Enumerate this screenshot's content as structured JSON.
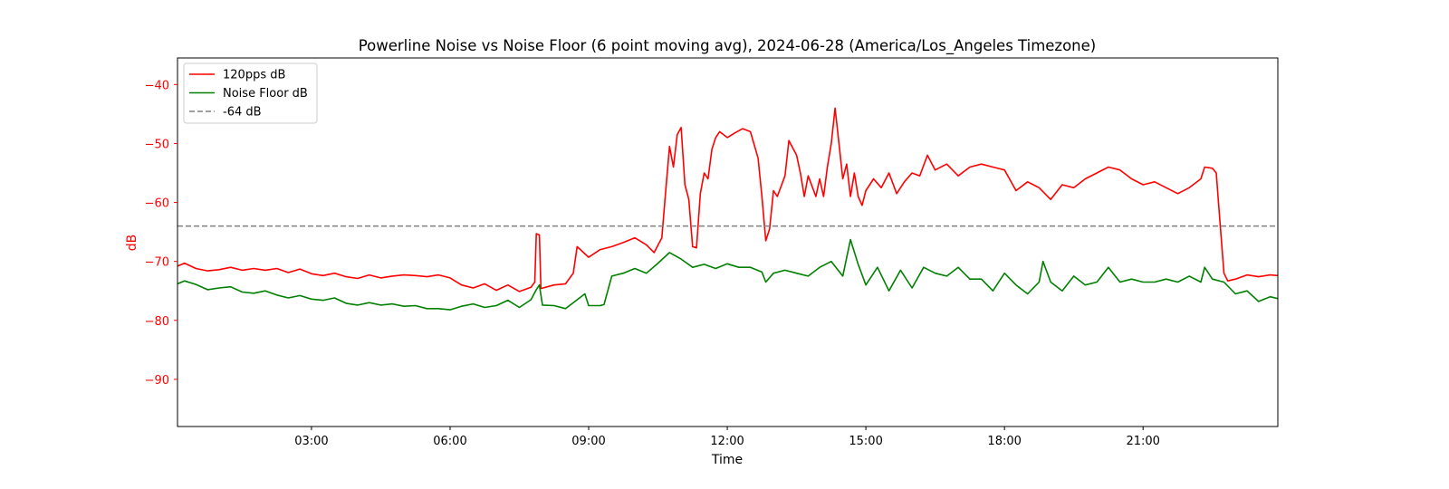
{
  "chart_data": {
    "type": "line",
    "title": "Powerline Noise vs Noise Floor (6 point moving avg), 2024-06-28 (America/Los_Angeles Timezone)",
    "xlabel": "Time",
    "ylabel": "dB",
    "ylabel_color": "#ff0000",
    "ytick_color": "#ff0000",
    "xlim": [
      "00:06",
      "23:55"
    ],
    "ylim": [
      -98,
      -35.5
    ],
    "xticks": [
      "03:00",
      "06:00",
      "09:00",
      "12:00",
      "15:00",
      "18:00",
      "21:00"
    ],
    "yticks": [
      -40,
      -50,
      -60,
      -70,
      -80,
      -90
    ],
    "grid": false,
    "legend_position": "upper-left",
    "series": [
      {
        "name": "120pps dB",
        "color": "#ff0000",
        "style": "solid",
        "points": [
          [
            "00:06",
            -70.8
          ],
          [
            "00:15",
            -70.3
          ],
          [
            "00:30",
            -71.2
          ],
          [
            "00:45",
            -71.6
          ],
          [
            "01:00",
            -71.4
          ],
          [
            "01:15",
            -71.0
          ],
          [
            "01:30",
            -71.5
          ],
          [
            "01:45",
            -71.2
          ],
          [
            "02:00",
            -71.5
          ],
          [
            "02:15",
            -71.2
          ],
          [
            "02:30",
            -71.9
          ],
          [
            "02:45",
            -71.3
          ],
          [
            "03:00",
            -72.1
          ],
          [
            "03:15",
            -72.4
          ],
          [
            "03:30",
            -72.0
          ],
          [
            "03:45",
            -72.6
          ],
          [
            "04:00",
            -72.9
          ],
          [
            "04:15",
            -72.3
          ],
          [
            "04:30",
            -72.8
          ],
          [
            "04:45",
            -72.5
          ],
          [
            "05:00",
            -72.3
          ],
          [
            "05:15",
            -72.4
          ],
          [
            "05:30",
            -72.6
          ],
          [
            "05:45",
            -72.3
          ],
          [
            "06:00",
            -72.8
          ],
          [
            "06:15",
            -74.0
          ],
          [
            "06:30",
            -74.5
          ],
          [
            "06:45",
            -73.8
          ],
          [
            "07:00",
            -74.9
          ],
          [
            "07:15",
            -74.0
          ],
          [
            "07:30",
            -75.1
          ],
          [
            "07:45",
            -74.4
          ],
          [
            "07:50",
            -73.5
          ],
          [
            "07:52",
            -65.3
          ],
          [
            "07:56",
            -65.5
          ],
          [
            "07:58",
            -74.6
          ],
          [
            "08:15",
            -74.0
          ],
          [
            "08:30",
            -73.8
          ],
          [
            "08:40",
            -72.0
          ],
          [
            "08:45",
            -67.5
          ],
          [
            "09:00",
            -69.3
          ],
          [
            "09:15",
            -68.0
          ],
          [
            "09:30",
            -67.5
          ],
          [
            "09:45",
            -66.8
          ],
          [
            "10:00",
            -66.0
          ],
          [
            "10:15",
            -67.2
          ],
          [
            "10:25",
            -68.5
          ],
          [
            "10:35",
            -66.0
          ],
          [
            "10:40",
            -58.0
          ],
          [
            "10:45",
            -50.5
          ],
          [
            "10:50",
            -54.0
          ],
          [
            "10:55",
            -48.5
          ],
          [
            "11:00",
            -47.3
          ],
          [
            "11:05",
            -57.0
          ],
          [
            "11:10",
            -59.5
          ],
          [
            "11:15",
            -67.5
          ],
          [
            "11:20",
            -67.7
          ],
          [
            "11:25",
            -58.5
          ],
          [
            "11:30",
            -55.0
          ],
          [
            "11:35",
            -56.0
          ],
          [
            "11:40",
            -51.0
          ],
          [
            "11:45",
            -49.0
          ],
          [
            "11:50",
            -48.0
          ],
          [
            "12:00",
            -49.0
          ],
          [
            "12:10",
            -48.2
          ],
          [
            "12:20",
            -47.5
          ],
          [
            "12:30",
            -48.0
          ],
          [
            "12:40",
            -52.5
          ],
          [
            "12:45",
            -59.0
          ],
          [
            "12:50",
            -66.5
          ],
          [
            "12:55",
            -64.5
          ],
          [
            "13:00",
            -58.0
          ],
          [
            "13:05",
            -59.0
          ],
          [
            "13:15",
            -55.5
          ],
          [
            "13:20",
            -49.5
          ],
          [
            "13:30",
            -52.0
          ],
          [
            "13:35",
            -55.0
          ],
          [
            "13:40",
            -59.0
          ],
          [
            "13:45",
            -55.5
          ],
          [
            "13:55",
            -59.0
          ],
          [
            "14:00",
            -56.0
          ],
          [
            "14:05",
            -59.0
          ],
          [
            "14:10",
            -54.0
          ],
          [
            "14:15",
            -50.0
          ],
          [
            "14:20",
            -44.0
          ],
          [
            "14:25",
            -50.0
          ],
          [
            "14:30",
            -56.0
          ],
          [
            "14:35",
            -53.5
          ],
          [
            "14:40",
            -59.0
          ],
          [
            "14:45",
            -55.0
          ],
          [
            "14:50",
            -59.0
          ],
          [
            "14:55",
            -60.5
          ],
          [
            "15:00",
            -58.0
          ],
          [
            "15:10",
            -56.0
          ],
          [
            "15:20",
            -57.5
          ],
          [
            "15:30",
            -55.0
          ],
          [
            "15:40",
            -58.5
          ],
          [
            "15:50",
            -56.5
          ],
          [
            "16:00",
            -55.0
          ],
          [
            "16:10",
            -55.5
          ],
          [
            "16:20",
            -52.0
          ],
          [
            "16:30",
            -54.5
          ],
          [
            "16:45",
            -53.5
          ],
          [
            "17:00",
            -55.5
          ],
          [
            "17:15",
            -54.0
          ],
          [
            "17:30",
            -53.5
          ],
          [
            "17:45",
            -54.0
          ],
          [
            "18:00",
            -54.5
          ],
          [
            "18:15",
            -58.0
          ],
          [
            "18:30",
            -56.5
          ],
          [
            "18:45",
            -57.5
          ],
          [
            "19:00",
            -59.5
          ],
          [
            "19:15",
            -57.0
          ],
          [
            "19:30",
            -57.5
          ],
          [
            "19:45",
            -56.0
          ],
          [
            "20:00",
            -55.0
          ],
          [
            "20:15",
            -54.0
          ],
          [
            "20:30",
            -54.5
          ],
          [
            "20:45",
            -56.0
          ],
          [
            "21:00",
            -57.0
          ],
          [
            "21:15",
            -56.5
          ],
          [
            "21:30",
            -57.5
          ],
          [
            "21:45",
            -58.5
          ],
          [
            "22:00",
            -57.5
          ],
          [
            "22:15",
            -56.0
          ],
          [
            "22:20",
            -54.0
          ],
          [
            "22:30",
            -54.2
          ],
          [
            "22:35",
            -55.0
          ],
          [
            "22:40",
            -63.5
          ],
          [
            "22:45",
            -72.0
          ],
          [
            "22:50",
            -73.3
          ],
          [
            "23:00",
            -73.0
          ],
          [
            "23:15",
            -72.3
          ],
          [
            "23:30",
            -72.6
          ],
          [
            "23:45",
            -72.3
          ],
          [
            "23:55",
            -72.4
          ]
        ]
      },
      {
        "name": "Noise Floor dB",
        "color": "#008000",
        "style": "solid",
        "points": [
          [
            "00:06",
            -73.8
          ],
          [
            "00:15",
            -73.3
          ],
          [
            "00:30",
            -73.9
          ],
          [
            "00:45",
            -74.8
          ],
          [
            "01:00",
            -74.5
          ],
          [
            "01:15",
            -74.3
          ],
          [
            "01:30",
            -75.2
          ],
          [
            "01:45",
            -75.4
          ],
          [
            "02:00",
            -75.0
          ],
          [
            "02:15",
            -75.7
          ],
          [
            "02:30",
            -76.2
          ],
          [
            "02:45",
            -75.8
          ],
          [
            "03:00",
            -76.4
          ],
          [
            "03:15",
            -76.6
          ],
          [
            "03:30",
            -76.2
          ],
          [
            "03:45",
            -77.1
          ],
          [
            "04:00",
            -77.4
          ],
          [
            "04:15",
            -77.0
          ],
          [
            "04:30",
            -77.4
          ],
          [
            "04:45",
            -77.2
          ],
          [
            "05:00",
            -77.6
          ],
          [
            "05:15",
            -77.5
          ],
          [
            "05:30",
            -78.0
          ],
          [
            "05:45",
            -78.0
          ],
          [
            "06:00",
            -78.2
          ],
          [
            "06:15",
            -77.6
          ],
          [
            "06:30",
            -77.2
          ],
          [
            "06:45",
            -77.8
          ],
          [
            "07:00",
            -77.5
          ],
          [
            "07:15",
            -76.6
          ],
          [
            "07:30",
            -77.8
          ],
          [
            "07:45",
            -76.5
          ],
          [
            "07:52",
            -74.8
          ],
          [
            "07:56",
            -74.0
          ],
          [
            "08:00",
            -77.4
          ],
          [
            "08:15",
            -77.5
          ],
          [
            "08:30",
            -78.0
          ],
          [
            "08:45",
            -76.5
          ],
          [
            "08:55",
            -75.5
          ],
          [
            "09:00",
            -77.5
          ],
          [
            "09:15",
            -77.5
          ],
          [
            "09:20",
            -77.3
          ],
          [
            "09:30",
            -72.5
          ],
          [
            "09:45",
            -72.0
          ],
          [
            "10:00",
            -71.2
          ],
          [
            "10:15",
            -72.0
          ],
          [
            "10:30",
            -70.3
          ],
          [
            "10:45",
            -68.5
          ],
          [
            "11:00",
            -69.6
          ],
          [
            "11:15",
            -71.0
          ],
          [
            "11:30",
            -70.5
          ],
          [
            "11:45",
            -71.2
          ],
          [
            "12:00",
            -70.4
          ],
          [
            "12:15",
            -71.0
          ],
          [
            "12:30",
            -71.0
          ],
          [
            "12:45",
            -71.8
          ],
          [
            "12:50",
            -73.5
          ],
          [
            "13:00",
            -72.0
          ],
          [
            "13:15",
            -71.5
          ],
          [
            "13:30",
            -72.0
          ],
          [
            "13:45",
            -72.5
          ],
          [
            "14:00",
            -71.0
          ],
          [
            "14:15",
            -70.0
          ],
          [
            "14:30",
            -72.5
          ],
          [
            "14:40",
            -66.3
          ],
          [
            "14:50",
            -70.5
          ],
          [
            "15:00",
            -74.0
          ],
          [
            "15:15",
            -71.0
          ],
          [
            "15:30",
            -75.0
          ],
          [
            "15:45",
            -71.5
          ],
          [
            "16:00",
            -74.5
          ],
          [
            "16:15",
            -71.0
          ],
          [
            "16:30",
            -72.0
          ],
          [
            "16:45",
            -72.5
          ],
          [
            "17:00",
            -71.0
          ],
          [
            "17:15",
            -73.0
          ],
          [
            "17:30",
            -73.0
          ],
          [
            "17:45",
            -75.0
          ],
          [
            "18:00",
            -72.0
          ],
          [
            "18:15",
            -74.0
          ],
          [
            "18:30",
            -75.5
          ],
          [
            "18:45",
            -73.5
          ],
          [
            "18:50",
            -70.0
          ],
          [
            "19:00",
            -73.5
          ],
          [
            "19:15",
            -75.0
          ],
          [
            "19:30",
            -72.5
          ],
          [
            "19:45",
            -74.0
          ],
          [
            "20:00",
            -73.5
          ],
          [
            "20:15",
            -71.0
          ],
          [
            "20:30",
            -73.5
          ],
          [
            "20:45",
            -73.0
          ],
          [
            "21:00",
            -73.5
          ],
          [
            "21:15",
            -73.5
          ],
          [
            "21:30",
            -73.0
          ],
          [
            "21:45",
            -73.5
          ],
          [
            "22:00",
            -72.5
          ],
          [
            "22:15",
            -73.5
          ],
          [
            "22:20",
            -71.0
          ],
          [
            "22:30",
            -73.0
          ],
          [
            "22:45",
            -73.5
          ],
          [
            "23:00",
            -75.5
          ],
          [
            "23:15",
            -75.0
          ],
          [
            "23:30",
            -76.8
          ],
          [
            "23:45",
            -76.0
          ],
          [
            "23:55",
            -76.3
          ]
        ]
      },
      {
        "name": "-64 dB",
        "color": "#808080",
        "style": "dashed",
        "points": [
          [
            "00:06",
            -64
          ],
          [
            "23:55",
            -64
          ]
        ]
      }
    ]
  }
}
